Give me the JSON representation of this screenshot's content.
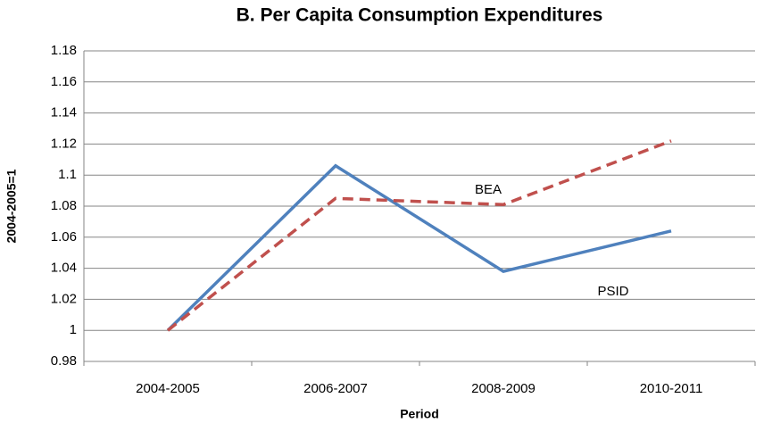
{
  "chart_data": {
    "type": "line",
    "title": "B. Per Capita Consumption Expenditures",
    "x_label": "Period",
    "y_label": "2004-2005=1",
    "categories": [
      "2004-2005",
      "2006-2007",
      "2008-2009",
      "2010-2011"
    ],
    "series": [
      {
        "name": "PSID",
        "color": "#4f81bd",
        "dashed": false,
        "values": [
          1,
          1.106,
          1.038,
          1.064
        ]
      },
      {
        "name": "BEA",
        "color": "#c0504d",
        "dashed": true,
        "values": [
          1,
          1.085,
          1.081,
          1.122
        ]
      }
    ],
    "ylim": [
      0.98,
      1.18
    ],
    "yticks": [
      0.98,
      1,
      1.02,
      1.04,
      1.06,
      1.08,
      1.1,
      1.12,
      1.14,
      1.16,
      1.18
    ],
    "grid": true
  }
}
